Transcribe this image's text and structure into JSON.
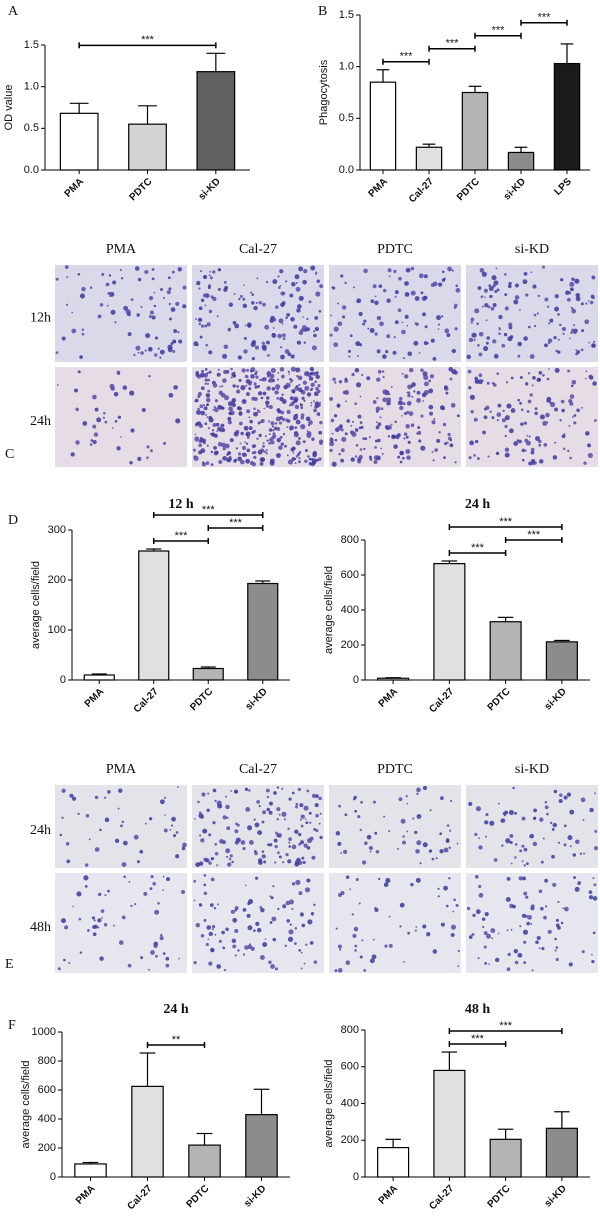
{
  "chart_data": [
    {
      "type": "bar",
      "panel": "A",
      "ylabel": "OD value",
      "categories": [
        "PMA",
        "PDTC",
        "si-KD"
      ],
      "values": [
        0.68,
        0.55,
        1.18
      ],
      "errors": [
        0.12,
        0.22,
        0.22
      ],
      "colors": [
        "#ffffff",
        "#d4d4d4",
        "#606060"
      ],
      "ylim": [
        0,
        1.5
      ],
      "yticks": [
        {
          "value": 0,
          "label": "0.0"
        },
        0.5,
        {
          "value": 1,
          "label": "1.0"
        },
        1.5
      ],
      "significance": [
        {
          "between": [
            "PMA",
            "si-KD"
          ],
          "label": "***"
        }
      ]
    },
    {
      "type": "bar",
      "panel": "B",
      "ylabel": "Phagocytosis",
      "categories": [
        "PMA",
        "Cal-27",
        "PDTC",
        "si-KD",
        "LPS"
      ],
      "values": [
        0.85,
        0.22,
        0.75,
        0.17,
        1.03
      ],
      "errors": [
        0.12,
        0.03,
        0.06,
        0.05,
        0.19
      ],
      "colors": [
        "#ffffff",
        "#e0e0e0",
        "#b4b4b4",
        "#8c8c8c",
        "#1a1a1a"
      ],
      "ylim": [
        0,
        1.5
      ],
      "yticks": [
        {
          "value": 0,
          "label": "0.0"
        },
        0.5,
        {
          "value": 1,
          "label": "1.0"
        },
        1.5
      ],
      "significance": [
        {
          "between": [
            "PMA",
            "Cal-27"
          ],
          "label": "***"
        },
        {
          "between": [
            "Cal-27",
            "PDTC"
          ],
          "label": "***"
        },
        {
          "between": [
            "PDTC",
            "si-KD"
          ],
          "label": "***"
        },
        {
          "between": [
            "si-KD",
            "LPS"
          ],
          "label": "***"
        }
      ]
    },
    {
      "type": "bar",
      "panel": "D",
      "title": "12 h",
      "ylabel": "average cells/field",
      "categories": [
        "PMA",
        "Cal-27",
        "PDTC",
        "si-KD"
      ],
      "values": [
        10,
        258,
        23,
        193
      ],
      "errors": [
        2,
        4,
        3,
        5
      ],
      "colors": [
        "#ffffff",
        "#e0e0e0",
        "#b4b4b4",
        "#8c8c8c"
      ],
      "ylim": [
        0,
        300
      ],
      "yticks": [
        0,
        100,
        200,
        300
      ],
      "significance": [
        {
          "between": [
            "Cal-27",
            "PDTC"
          ],
          "label": "***"
        },
        {
          "between": [
            "PDTC",
            "si-KD"
          ],
          "label": "***"
        },
        {
          "between": [
            "Cal-27",
            "si-KD"
          ],
          "label": "***"
        }
      ]
    },
    {
      "type": "bar",
      "title": "24 h",
      "ylabel": "average cells/field",
      "categories": [
        "PMA",
        "Cal-27",
        "PDTC",
        "si-KD"
      ],
      "values": [
        10,
        665,
        333,
        218
      ],
      "errors": [
        3,
        15,
        25,
        8
      ],
      "colors": [
        "#ffffff",
        "#e0e0e0",
        "#b4b4b4",
        "#8c8c8c"
      ],
      "ylim": [
        0,
        800
      ],
      "yticks": [
        0,
        200,
        400,
        600,
        800
      ],
      "significance": [
        {
          "between": [
            "Cal-27",
            "PDTC"
          ],
          "label": "***"
        },
        {
          "between": [
            "PDTC",
            "si-KD"
          ],
          "label": "***"
        },
        {
          "between": [
            "Cal-27",
            "si-KD"
          ],
          "label": "***"
        }
      ]
    },
    {
      "type": "bar",
      "panel": "F",
      "title": "24 h",
      "ylabel": "average cells/field",
      "categories": [
        "PMA",
        "Cal-27",
        "PDTC",
        "si-KD"
      ],
      "values": [
        90,
        625,
        220,
        430
      ],
      "errors": [
        10,
        230,
        80,
        175
      ],
      "colors": [
        "#ffffff",
        "#e0e0e0",
        "#b4b4b4",
        "#8c8c8c"
      ],
      "ylim": [
        0,
        1000
      ],
      "yticks": [
        0,
        200,
        400,
        600,
        800,
        1000
      ],
      "significance": [
        {
          "between": [
            "Cal-27",
            "PDTC"
          ],
          "label": "**"
        }
      ]
    },
    {
      "type": "bar",
      "title": "48 h",
      "ylabel": "average cells/field",
      "categories": [
        "PMA",
        "Cal-27",
        "PDTC",
        "si-KD"
      ],
      "values": [
        160,
        580,
        205,
        265
      ],
      "errors": [
        45,
        100,
        55,
        90
      ],
      "colors": [
        "#ffffff",
        "#e0e0e0",
        "#b4b4b4",
        "#8c8c8c"
      ],
      "ylim": [
        0,
        800
      ],
      "yticks": [
        0,
        200,
        400,
        600,
        800
      ],
      "significance": [
        {
          "between": [
            "Cal-27",
            "PDTC"
          ],
          "label": "***"
        },
        {
          "between": [
            "Cal-27",
            "si-KD"
          ],
          "label": "***"
        }
      ]
    }
  ],
  "micrographs": [
    {
      "panel": "C",
      "columns": [
        "PMA",
        "Cal-27",
        "PDTC",
        "si-KD"
      ],
      "rows": [
        "12h",
        "24h"
      ]
    },
    {
      "panel": "E",
      "columns": [
        "PMA",
        "Cal-27",
        "PDTC",
        "si-KD"
      ],
      "rows": [
        "24h",
        "48h"
      ]
    }
  ]
}
